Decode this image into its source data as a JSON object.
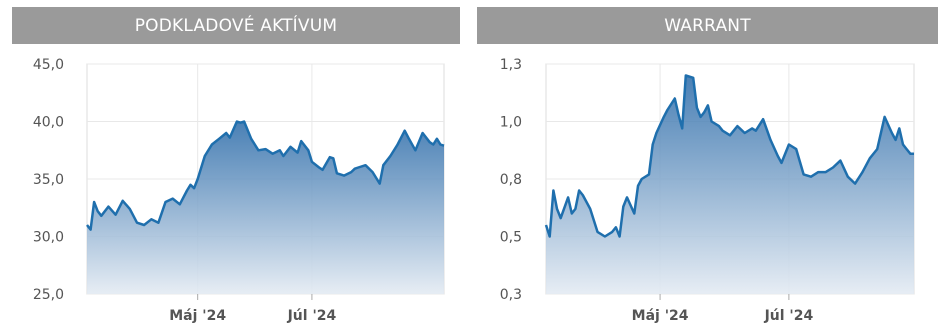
{
  "headers": {
    "left": "PODKLADOVÉ AKTÍVUM",
    "right": "WARRANT"
  },
  "colors": {
    "line": "#1f6fad",
    "fill_top": "#2a6aa8",
    "fill_bottom": "#e4ebf3",
    "header_bg": "#9a9a9a",
    "grid": "#e8e8e8"
  },
  "chart_data": [
    {
      "type": "area",
      "title": "PODKLADOVÉ AKTÍVUM",
      "xlabel": "",
      "ylabel": "",
      "ylim": [
        25,
        45
      ],
      "yticks": [
        25,
        30,
        35,
        40,
        45
      ],
      "ytick_labels": [
        "25,0",
        "30,0",
        "35,0",
        "40,0",
        "45,0"
      ],
      "xticks": [
        {
          "x": 0.31,
          "label": "Máj '24"
        },
        {
          "x": 0.63,
          "label": "Júl '24"
        }
      ],
      "grid": true,
      "x": [
        0,
        0.01,
        0.02,
        0.03,
        0.04,
        0.06,
        0.08,
        0.1,
        0.12,
        0.14,
        0.16,
        0.18,
        0.2,
        0.22,
        0.24,
        0.26,
        0.28,
        0.29,
        0.3,
        0.31,
        0.33,
        0.35,
        0.37,
        0.39,
        0.4,
        0.42,
        0.43,
        0.44,
        0.46,
        0.47,
        0.48,
        0.5,
        0.52,
        0.54,
        0.55,
        0.57,
        0.59,
        0.6,
        0.62,
        0.63,
        0.65,
        0.66,
        0.68,
        0.69,
        0.7,
        0.72,
        0.74,
        0.75,
        0.76,
        0.78,
        0.8,
        0.82,
        0.83,
        0.85,
        0.87,
        0.89,
        0.9,
        0.92,
        0.94,
        0.96,
        0.97,
        0.98,
        0.99,
        1.0
      ],
      "values": [
        31.0,
        30.6,
        33.0,
        32.2,
        31.8,
        32.6,
        31.9,
        33.1,
        32.4,
        31.2,
        31.0,
        31.5,
        31.2,
        33.0,
        33.3,
        32.8,
        34.0,
        34.5,
        34.2,
        35.0,
        37.0,
        38.0,
        38.5,
        39.0,
        38.6,
        40.0,
        39.9,
        40.0,
        38.5,
        38.0,
        37.5,
        37.6,
        37.2,
        37.5,
        37.0,
        37.8,
        37.3,
        38.3,
        37.5,
        36.5,
        36.0,
        35.8,
        36.9,
        36.8,
        35.5,
        35.3,
        35.6,
        35.9,
        36.0,
        36.2,
        35.6,
        34.6,
        36.2,
        37.0,
        38.0,
        39.2,
        38.6,
        37.5,
        39.0,
        38.2,
        38.0,
        38.5,
        38.0,
        37.9
      ]
    },
    {
      "type": "area",
      "title": "WARRANT",
      "xlabel": "",
      "ylabel": "",
      "ylim": [
        0.25,
        1.25
      ],
      "yticks": [
        0.25,
        0.5,
        0.75,
        1.0,
        1.25
      ],
      "ytick_labels": [
        "0,3",
        "0,5",
        "0,8",
        "1,0",
        "1,3"
      ],
      "xticks": [
        {
          "x": 0.31,
          "label": "Máj '24"
        },
        {
          "x": 0.66,
          "label": "Júl '24"
        }
      ],
      "grid": true,
      "x": [
        0,
        0.01,
        0.02,
        0.03,
        0.04,
        0.06,
        0.07,
        0.08,
        0.09,
        0.1,
        0.12,
        0.14,
        0.16,
        0.18,
        0.19,
        0.2,
        0.21,
        0.22,
        0.24,
        0.25,
        0.26,
        0.28,
        0.29,
        0.3,
        0.32,
        0.33,
        0.35,
        0.36,
        0.37,
        0.38,
        0.4,
        0.41,
        0.42,
        0.43,
        0.44,
        0.45,
        0.47,
        0.48,
        0.5,
        0.52,
        0.54,
        0.56,
        0.57,
        0.59,
        0.61,
        0.63,
        0.64,
        0.66,
        0.68,
        0.7,
        0.72,
        0.74,
        0.76,
        0.78,
        0.8,
        0.82,
        0.84,
        0.86,
        0.88,
        0.9,
        0.92,
        0.94,
        0.95,
        0.96,
        0.97,
        0.98,
        0.99,
        1.0
      ],
      "values": [
        0.55,
        0.5,
        0.7,
        0.62,
        0.58,
        0.67,
        0.6,
        0.62,
        0.7,
        0.68,
        0.62,
        0.52,
        0.5,
        0.52,
        0.54,
        0.5,
        0.63,
        0.67,
        0.6,
        0.72,
        0.75,
        0.77,
        0.9,
        0.95,
        1.02,
        1.05,
        1.1,
        1.03,
        0.97,
        1.2,
        1.19,
        1.06,
        1.02,
        1.04,
        1.07,
        1.0,
        0.98,
        0.96,
        0.94,
        0.98,
        0.95,
        0.97,
        0.96,
        1.01,
        0.92,
        0.85,
        0.82,
        0.9,
        0.88,
        0.77,
        0.76,
        0.78,
        0.78,
        0.8,
        0.83,
        0.76,
        0.73,
        0.78,
        0.84,
        0.88,
        1.02,
        0.95,
        0.92,
        0.97,
        0.9,
        0.88,
        0.86,
        0.86
      ]
    }
  ]
}
